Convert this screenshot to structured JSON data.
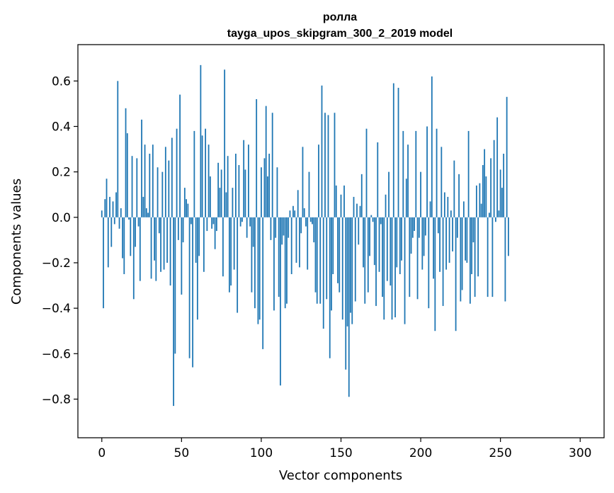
{
  "chart_data": {
    "type": "bar",
    "title": "ролла",
    "subtitle": "tayga_upos_skipgram_300_2_2019 model",
    "xlabel": "Vector components",
    "ylabel": "Components values",
    "xlim": [
      -15,
      315
    ],
    "ylim": [
      -0.97,
      0.76
    ],
    "xticks": [
      0,
      50,
      100,
      150,
      200,
      250,
      300
    ],
    "yticks": [
      -0.8,
      -0.6,
      -0.4,
      -0.2,
      0.0,
      0.2,
      0.4,
      0.6
    ],
    "ytick_labels": [
      "−0.8",
      "−0.6",
      "−0.4",
      "−0.2",
      "0.0",
      "0.2",
      "0.4",
      "0.6"
    ],
    "xtick_labels": [
      "0",
      "50",
      "100",
      "150",
      "200",
      "250",
      "300"
    ],
    "bar_color": "#1f77b4",
    "values": [
      0.03,
      -0.4,
      0.08,
      0.17,
      -0.22,
      0.09,
      -0.13,
      0.07,
      -0.03,
      0.11,
      0.6,
      -0.05,
      0.04,
      -0.18,
      -0.25,
      0.48,
      0.37,
      -0.01,
      -0.17,
      0.27,
      -0.36,
      -0.13,
      0.26,
      -0.04,
      -0.28,
      0.43,
      0.09,
      0.32,
      0.04,
      0.02,
      0.28,
      -0.27,
      0.32,
      -0.19,
      -0.28,
      0.22,
      -0.07,
      -0.24,
      0.2,
      -0.23,
      0.31,
      -0.2,
      0.25,
      -0.3,
      0.35,
      -0.83,
      -0.6,
      0.39,
      -0.1,
      0.54,
      -0.34,
      -0.11,
      0.13,
      0.08,
      0.06,
      -0.62,
      -0.03,
      -0.66,
      0.38,
      -0.2,
      -0.45,
      -0.17,
      0.67,
      0.36,
      -0.24,
      0.39,
      -0.06,
      0.32,
      0.18,
      -0.05,
      -0.03,
      -0.14,
      -0.06,
      0.24,
      0.13,
      0.21,
      -0.26,
      0.65,
      0.11,
      0.27,
      -0.33,
      -0.3,
      0.13,
      -0.23,
      0.28,
      -0.42,
      0.23,
      -0.04,
      -0.02,
      0.34,
      0.21,
      -0.09,
      0.32,
      -0.04,
      -0.33,
      -0.13,
      -0.4,
      0.52,
      -0.47,
      -0.45,
      0.22,
      -0.58,
      0.26,
      0.49,
      0.18,
      0.28,
      -0.1,
      0.46,
      -0.41,
      -0.09,
      0.22,
      -0.35,
      -0.74,
      -0.12,
      -0.08,
      -0.4,
      -0.38,
      -0.09,
      0.03,
      -0.25,
      0.05,
      0.03,
      -0.2,
      0.12,
      -0.22,
      -0.07,
      0.31,
      0.04,
      -0.04,
      -0.23,
      0.2,
      -0.02,
      -0.03,
      -0.11,
      -0.33,
      -0.38,
      0.32,
      -0.38,
      0.58,
      -0.49,
      0.46,
      -0.36,
      0.45,
      -0.62,
      -0.41,
      -0.25,
      0.46,
      0.14,
      -0.29,
      -0.33,
      0.1,
      -0.45,
      0.14,
      -0.67,
      -0.48,
      -0.79,
      -0.42,
      -0.47,
      0.09,
      -0.37,
      0.06,
      -0.12,
      0.05,
      0.19,
      -0.22,
      -0.38,
      0.39,
      -0.33,
      -0.17,
      0.01,
      -0.02,
      -0.21,
      -0.39,
      0.33,
      -0.24,
      -0.03,
      -0.35,
      -0.45,
      0.1,
      -0.28,
      0.2,
      -0.3,
      -0.45,
      0.59,
      -0.44,
      -0.22,
      0.57,
      -0.25,
      -0.19,
      0.38,
      -0.47,
      0.17,
      0.32,
      -0.35,
      -0.16,
      -0.09,
      -0.06,
      0.38,
      -0.36,
      -0.09,
      0.2,
      -0.23,
      -0.17,
      -0.08,
      0.4,
      -0.4,
      0.07,
      0.62,
      -0.27,
      -0.5,
      0.39,
      -0.07,
      -0.24,
      0.31,
      -0.39,
      0.11,
      -0.23,
      0.09,
      -0.2,
      0.03,
      -0.15,
      0.25,
      -0.5,
      -0.09,
      0.19,
      -0.37,
      -0.32,
      0.07,
      -0.19,
      -0.2,
      0.38,
      -0.38,
      -0.25,
      -0.11,
      -0.35,
      0.14,
      -0.26,
      0.15,
      0.06,
      0.23,
      0.3,
      0.18,
      -0.35,
      0.02,
      0.26,
      -0.35,
      0.34,
      -0.02,
      0.44,
      0.03,
      0.21,
      0.13,
      0.28,
      -0.37,
      0.53,
      -0.17
    ]
  }
}
